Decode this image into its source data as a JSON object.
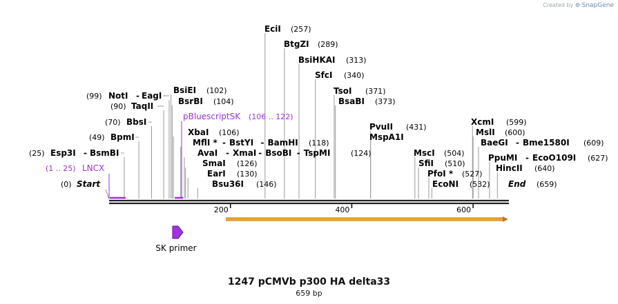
{
  "credit": {
    "prefix": "Created by",
    "brand": "SnapGene"
  },
  "title": "1247 pCMVb p300 HA delta33",
  "subtitle": "659 bp",
  "colors": {
    "backbone": "#222222",
    "feature": "#9b30d9",
    "orf_fill": "#f0a830",
    "orf_edge": "#c07a10",
    "primer": "#a032e0"
  },
  "sequence": {
    "length": 659
  },
  "ends": [
    {
      "pos": "(0)",
      "name": "Start"
    },
    {
      "pos": "(659)",
      "name": "End"
    }
  ],
  "ticks": [
    {
      "label": "200",
      "value": 200
    },
    {
      "label": "400",
      "value": 400
    },
    {
      "label": "600",
      "value": 600
    }
  ],
  "features": [
    {
      "name": "LNCX",
      "range": "(1 .. 25)",
      "start": 1,
      "end": 25
    },
    {
      "name": "pBluescriptSK",
      "range": "(106 .. 122)",
      "start": 106,
      "end": 122
    }
  ],
  "orf": {
    "start": 193,
    "end": 659
  },
  "primer": {
    "name": "SK primer"
  },
  "sites": [
    {
      "name": "EciI",
      "pos": 257,
      "pos_label": "(257)"
    },
    {
      "name": "BtgZI",
      "pos": 289,
      "pos_label": "(289)"
    },
    {
      "name": "BsiHKAI",
      "pos": 313,
      "pos_label": "(313)"
    },
    {
      "name": "SfcI",
      "pos": 340,
      "pos_label": "(340)"
    },
    {
      "name": "TsoI",
      "pos": 371,
      "pos_label": "(371)"
    },
    {
      "name": "BsaBI",
      "pos": 373,
      "pos_label": "(373)"
    },
    {
      "name": "BsiEI",
      "pos": 102,
      "pos_label": "(102)"
    },
    {
      "name": "BsrBI",
      "pos": 104,
      "pos_label": "(104)"
    },
    {
      "name": "NotI",
      "pos": 99,
      "pos_label": "(99)",
      "extra": "EagI"
    },
    {
      "name": "TaqII",
      "pos": 90,
      "pos_label": "(90)"
    },
    {
      "name": "BbsI",
      "pos": 70,
      "pos_label": "(70)"
    },
    {
      "name": "BpmI",
      "pos": 49,
      "pos_label": "(49)"
    },
    {
      "name": "Esp3I",
      "pos": 25,
      "pos_label": "(25)",
      "extra": "BsmBI"
    },
    {
      "name": "XbaI",
      "pos": 106,
      "pos_label": "(106)"
    },
    {
      "name": "MflI *",
      "pos": 118,
      "pos_label": "(118)",
      "extra": "BstYI - BamHI"
    },
    {
      "name": "AvaI",
      "pos": 124,
      "pos_label": "(124)",
      "extra": "XmaI - BsoBI - TspMI"
    },
    {
      "name": "SmaI",
      "pos": 126,
      "pos_label": "(126)"
    },
    {
      "name": "EarI",
      "pos": 130,
      "pos_label": "(130)"
    },
    {
      "name": "Bsu36I",
      "pos": 146,
      "pos_label": "(146)"
    },
    {
      "name": "PvuII",
      "pos": 431,
      "pos_label": "(431)"
    },
    {
      "name": "MspA1I",
      "pos": 431,
      "pos_label": ""
    },
    {
      "name": "MscI",
      "pos": 504,
      "pos_label": "(504)"
    },
    {
      "name": "SfiI",
      "pos": 510,
      "pos_label": "(510)"
    },
    {
      "name": "PfoI *",
      "pos": 527,
      "pos_label": "(527)"
    },
    {
      "name": "EcoNI",
      "pos": 532,
      "pos_label": "(532)"
    },
    {
      "name": "XcmI",
      "pos": 599,
      "pos_label": "(599)"
    },
    {
      "name": "MslI",
      "pos": 600,
      "pos_label": "(600)"
    },
    {
      "name": "BaeGI",
      "pos": 609,
      "pos_label": "(609)",
      "extra": "Bme1580I"
    },
    {
      "name": "PpuMI",
      "pos": 627,
      "pos_label": "(627)",
      "extra": "EcoO109I"
    },
    {
      "name": "HincII",
      "pos": 640,
      "pos_label": "(640)"
    }
  ]
}
